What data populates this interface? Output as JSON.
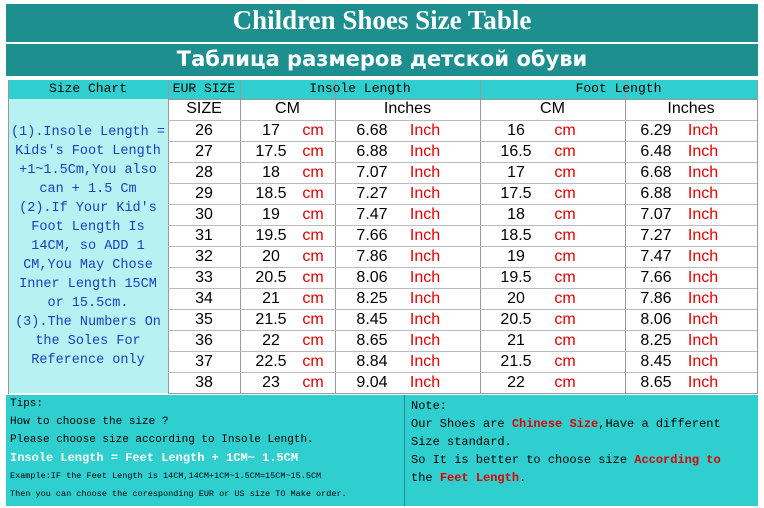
{
  "header": {
    "title": "Children Shoes Size Table",
    "subtitle": "Таблица размеров детской обуви"
  },
  "table": {
    "group_headers": [
      "Size Chart",
      "EUR SIZE",
      "Insole Length",
      "Foot Length"
    ],
    "sub_headers": [
      "SIZE",
      "CM",
      "Inches",
      "CM",
      "Inches"
    ],
    "rows": [
      [
        "26",
        "17",
        "cm",
        "6.68",
        "Inch",
        "16",
        "cm",
        "6.29",
        "Inch"
      ],
      [
        "27",
        "17.5",
        "cm",
        "6.88",
        "Inch",
        "16.5",
        "cm",
        "6.48",
        "Inch"
      ],
      [
        "28",
        "18",
        "cm",
        "7.07",
        "Inch",
        "17",
        "cm",
        "6.68",
        "Inch"
      ],
      [
        "29",
        "18.5",
        "cm",
        "7.27",
        "Inch",
        "17.5",
        "cm",
        "6.88",
        "Inch"
      ],
      [
        "30",
        "19",
        "cm",
        "7.47",
        "Inch",
        "18",
        "cm",
        "7.07",
        "Inch"
      ],
      [
        "31",
        "19.5",
        "cm",
        "7.66",
        "Inch",
        "18.5",
        "cm",
        "7.27",
        "Inch"
      ],
      [
        "32",
        "20",
        "cm",
        "7.86",
        "Inch",
        "19",
        "cm",
        "7.47",
        "Inch"
      ],
      [
        "33",
        "20.5",
        "cm",
        "8.06",
        "Inch",
        "19.5",
        "cm",
        "7.66",
        "Inch"
      ],
      [
        "34",
        "21",
        "cm",
        "8.25",
        "Inch",
        "20",
        "cm",
        "7.86",
        "Inch"
      ],
      [
        "35",
        "21.5",
        "cm",
        "8.45",
        "Inch",
        "20.5",
        "cm",
        "8.06",
        "Inch"
      ],
      [
        "36",
        "22",
        "cm",
        "8.65",
        "Inch",
        "21",
        "cm",
        "8.25",
        "Inch"
      ],
      [
        "37",
        "22.5",
        "cm",
        "8.84",
        "Inch",
        "21.5",
        "cm",
        "8.45",
        "Inch"
      ],
      [
        "38",
        "23",
        "cm",
        "9.04",
        "Inch",
        "22",
        "cm",
        "8.65",
        "Inch"
      ]
    ],
    "side_note": [
      "(1).Insole Length =",
      "Kids's Foot Length",
      "+1~1.5Cm,You also",
      "can + 1.5 Cm",
      "(2).If Your Kid's",
      "Foot Length Is",
      "14CM,  so ADD 1",
      "CM,You May Chose",
      "Inner Length 15CM",
      "or 15.5cm.",
      "(3).The Numbers On",
      "the Soles For",
      "Reference only"
    ]
  },
  "tips": {
    "lines": [
      "Tips:",
      "How to choose the size ?",
      "Please choose size according to Insole Length.",
      "Insole Length = Feet Length + 1CM~ 1.5CM",
      "Example:IF the Feet Length is 14CM,14CM+1CM~1.5CM=15CM~15.5CM",
      "Then you can choose the coresponding EUR or US size TO Make order."
    ]
  },
  "note": {
    "lines": [
      [
        "Note:"
      ],
      [
        "Our Shoes are ",
        "Chinese Size",
        ",Have a different"
      ],
      [
        "Size standard."
      ],
      [
        "So It is better to choose size ",
        "According to"
      ],
      [
        "the ",
        "Feet Length",
        "."
      ]
    ]
  }
}
